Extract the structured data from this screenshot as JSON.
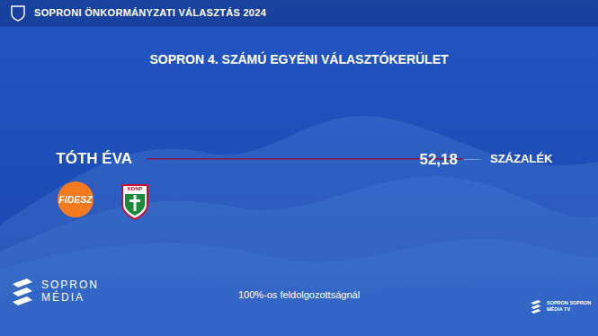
{
  "header": "SOPRONI ÖNKORMÁNYZATI VÁLASZTÁS 2024",
  "chart_data": {
    "type": "bar",
    "orientation": "horizontal",
    "title": "SOPRON 4. SZÁMÚ EGYÉNI VÁLASZTÓKERÜLET",
    "categories": [
      "TÓTH ÉVA"
    ],
    "values": [
      52.18
    ],
    "value_labels": [
      "52,18"
    ],
    "data_labels": true,
    "color": "#7e1342",
    "xlim": [
      0,
      55
    ],
    "xticks": [],
    "tick_labels": "y",
    "grid": false,
    "annotations": [
      "SZÁZALÉK"
    ]
  },
  "logos": [
    "FIDESZ",
    "KDNP"
  ],
  "footer": "100%-os feldolgozottságnál",
  "brand": [
    "SOPRON",
    "MÉDIA"
  ],
  "corner_brand": [
    "SOPRON",
    "MÉDIA",
    "SOPRON",
    "TV"
  ]
}
